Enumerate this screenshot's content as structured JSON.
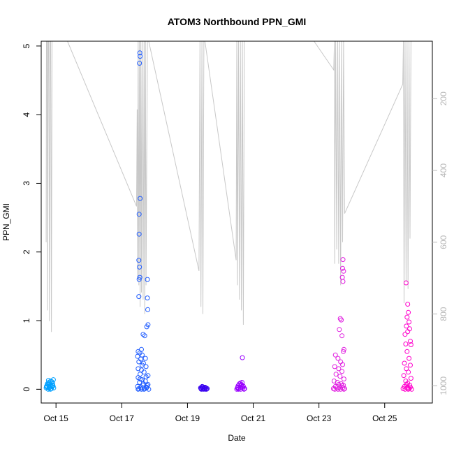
{
  "chart_data": {
    "type": "scatter",
    "title": "ATOM3 Northbound PPN_GMI",
    "xlabel": "Date",
    "ylabel": "PPN_GMI",
    "xlim": [
      14.55,
      26.45
    ],
    "ylim": [
      -0.2,
      5.07
    ],
    "x_ticks": [
      {
        "label": "Oct 15",
        "value": 15
      },
      {
        "label": "Oct 17",
        "value": 17
      },
      {
        "label": "Oct 19",
        "value": 19
      },
      {
        "label": "Oct 21",
        "value": 21
      },
      {
        "label": "Oct 23",
        "value": 23
      },
      {
        "label": "Oct 25",
        "value": 25
      }
    ],
    "y_ticks": [
      "0",
      "1",
      "2",
      "3",
      "4",
      "5"
    ],
    "y2_ticks": [
      "200",
      "400",
      "600",
      "800",
      "1000"
    ],
    "y2_range": [
      1048,
      40
    ],
    "grid": false,
    "series": [
      {
        "color": "#00a0ff",
        "points": [
          [
            14.7,
            0.02
          ],
          [
            14.72,
            0.05
          ],
          [
            14.74,
            0.08
          ],
          [
            14.76,
            0.0
          ],
          [
            14.78,
            0.1
          ],
          [
            14.8,
            0.03
          ],
          [
            14.82,
            0.06
          ],
          [
            14.84,
            0.12
          ],
          [
            14.86,
            0.01
          ],
          [
            14.88,
            0.04
          ],
          [
            14.9,
            0.09
          ],
          [
            14.92,
            0.14
          ],
          [
            14.75,
            0.07
          ],
          [
            14.79,
            0.02
          ],
          [
            14.83,
            0.0
          ],
          [
            14.87,
            0.11
          ],
          [
            14.91,
            0.05
          ],
          [
            14.73,
            0.03
          ],
          [
            14.81,
            0.08
          ],
          [
            14.85,
            0.01
          ],
          [
            14.89,
            0.06
          ],
          [
            14.93,
            0.02
          ],
          [
            14.77,
            0.13
          ],
          [
            14.71,
            0.04
          ]
        ]
      },
      {
        "color": "#1f5cff",
        "points": [
          [
            17.55,
            4.9
          ],
          [
            17.56,
            4.85
          ],
          [
            17.54,
            4.75
          ],
          [
            17.56,
            2.78
          ],
          [
            17.53,
            2.55
          ],
          [
            17.53,
            2.26
          ],
          [
            17.52,
            1.88
          ],
          [
            17.54,
            1.78
          ],
          [
            17.55,
            1.63
          ],
          [
            17.53,
            1.6
          ],
          [
            17.78,
            1.6
          ],
          [
            17.52,
            1.35
          ],
          [
            17.78,
            1.33
          ],
          [
            17.79,
            1.16
          ],
          [
            17.8,
            0.94
          ],
          [
            17.76,
            0.91
          ],
          [
            17.65,
            0.8
          ],
          [
            17.7,
            0.78
          ],
          [
            17.6,
            0.58
          ],
          [
            17.55,
            0.53
          ],
          [
            17.5,
            0.55
          ],
          [
            17.62,
            0.5
          ],
          [
            17.48,
            0.48
          ],
          [
            17.58,
            0.44
          ],
          [
            17.72,
            0.45
          ],
          [
            17.52,
            0.4
          ],
          [
            17.66,
            0.38
          ],
          [
            17.74,
            0.33
          ],
          [
            17.5,
            0.3
          ],
          [
            17.6,
            0.28
          ],
          [
            17.68,
            0.25
          ],
          [
            17.56,
            0.22
          ],
          [
            17.8,
            0.2
          ],
          [
            17.5,
            0.17
          ],
          [
            17.62,
            0.14
          ],
          [
            17.72,
            0.12
          ],
          [
            17.54,
            0.1
          ],
          [
            17.66,
            0.08
          ],
          [
            17.78,
            0.05
          ],
          [
            17.48,
            0.04
          ],
          [
            17.58,
            0.02
          ],
          [
            17.7,
            0.01
          ],
          [
            17.82,
            0.0
          ],
          [
            17.5,
            0.0
          ],
          [
            17.6,
            0.0
          ],
          [
            17.75,
            0.02
          ],
          [
            17.64,
            0.06
          ],
          [
            17.76,
            0.03
          ],
          [
            17.52,
            0.01
          ],
          [
            17.68,
            0.0
          ],
          [
            17.8,
            0.07
          ],
          [
            17.56,
            0.15
          ],
          [
            17.74,
            0.18
          ],
          [
            17.62,
            0.35
          ]
        ]
      },
      {
        "color": "#3800f0",
        "points": [
          [
            19.4,
            0.02
          ],
          [
            19.42,
            0.0
          ],
          [
            19.44,
            0.03
          ],
          [
            19.46,
            0.01
          ],
          [
            19.48,
            0.0
          ],
          [
            19.5,
            0.02
          ],
          [
            19.52,
            0.01
          ],
          [
            19.54,
            0.0
          ],
          [
            19.56,
            0.02
          ],
          [
            19.58,
            0.0
          ],
          [
            19.45,
            0.04
          ],
          [
            19.53,
            0.03
          ],
          [
            19.6,
            0.01
          ],
          [
            19.41,
            0.01
          ]
        ]
      },
      {
        "color": "#9900ff",
        "points": [
          [
            20.5,
            0.0
          ],
          [
            20.52,
            0.02
          ],
          [
            20.54,
            0.05
          ],
          [
            20.56,
            0.01
          ],
          [
            20.58,
            0.08
          ],
          [
            20.6,
            0.03
          ],
          [
            20.62,
            0.0
          ],
          [
            20.64,
            0.06
          ],
          [
            20.66,
            0.1
          ],
          [
            20.68,
            0.02
          ],
          [
            20.7,
            0.04
          ],
          [
            20.72,
            0.0
          ],
          [
            20.74,
            0.01
          ],
          [
            20.67,
            0.46
          ],
          [
            20.55,
            0.0
          ],
          [
            20.63,
            0.07
          ],
          [
            20.69,
            0.05
          ],
          [
            20.53,
            0.03
          ],
          [
            20.61,
            0.09
          ]
        ]
      },
      {
        "color": "#e01ee0",
        "points": [
          [
            23.73,
            1.89
          ],
          [
            23.72,
            1.76
          ],
          [
            23.75,
            1.72
          ],
          [
            23.71,
            1.63
          ],
          [
            23.73,
            1.57
          ],
          [
            23.65,
            1.03
          ],
          [
            23.68,
            1.01
          ],
          [
            23.62,
            0.87
          ],
          [
            23.7,
            0.78
          ],
          [
            23.76,
            0.58
          ],
          [
            23.74,
            0.55
          ],
          [
            23.5,
            0.5
          ],
          [
            23.58,
            0.45
          ],
          [
            23.66,
            0.4
          ],
          [
            23.72,
            0.36
          ],
          [
            23.48,
            0.33
          ],
          [
            23.6,
            0.3
          ],
          [
            23.7,
            0.26
          ],
          [
            23.52,
            0.22
          ],
          [
            23.64,
            0.19
          ],
          [
            23.76,
            0.15
          ],
          [
            23.46,
            0.12
          ],
          [
            23.56,
            0.1
          ],
          [
            23.68,
            0.08
          ],
          [
            23.74,
            0.06
          ],
          [
            23.5,
            0.04
          ],
          [
            23.62,
            0.03
          ],
          [
            23.72,
            0.02
          ],
          [
            23.44,
            0.01
          ],
          [
            23.58,
            0.0
          ],
          [
            23.66,
            0.0
          ],
          [
            23.78,
            0.01
          ],
          [
            23.54,
            0.02
          ],
          [
            23.7,
            0.05
          ],
          [
            23.6,
            0.07
          ],
          [
            23.48,
            0.0
          ],
          [
            23.76,
            0.0
          ]
        ]
      },
      {
        "color": "#ff00cc",
        "points": [
          [
            25.65,
            1.55
          ],
          [
            25.7,
            1.24
          ],
          [
            25.72,
            1.12
          ],
          [
            25.68,
            1.05
          ],
          [
            25.74,
            0.98
          ],
          [
            25.66,
            0.92
          ],
          [
            25.76,
            0.88
          ],
          [
            25.7,
            0.84
          ],
          [
            25.62,
            0.8
          ],
          [
            25.78,
            0.7
          ],
          [
            25.64,
            0.66
          ],
          [
            25.8,
            0.65
          ],
          [
            25.68,
            0.55
          ],
          [
            25.74,
            0.45
          ],
          [
            25.6,
            0.38
          ],
          [
            25.78,
            0.35
          ],
          [
            25.66,
            0.3
          ],
          [
            25.72,
            0.25
          ],
          [
            25.58,
            0.2
          ],
          [
            25.8,
            0.16
          ],
          [
            25.64,
            0.12
          ],
          [
            25.7,
            0.09
          ],
          [
            25.76,
            0.06
          ],
          [
            25.6,
            0.04
          ],
          [
            25.68,
            0.02
          ],
          [
            25.74,
            0.01
          ],
          [
            25.82,
            0.0
          ],
          [
            25.62,
            0.0
          ],
          [
            25.72,
            0.0
          ],
          [
            25.78,
            0.03
          ],
          [
            25.56,
            0.01
          ],
          [
            25.66,
            0.07
          ]
        ]
      }
    ],
    "depth_trace": {
      "color": "#c8c8c8",
      "axis": "right",
      "points": [
        [
          14.7,
          600
        ],
        [
          14.71,
          40
        ],
        [
          14.73,
          40
        ],
        [
          14.74,
          790
        ],
        [
          14.76,
          40
        ],
        [
          14.78,
          40
        ],
        [
          14.8,
          820
        ],
        [
          14.82,
          40
        ],
        [
          14.84,
          40
        ],
        [
          14.86,
          850
        ],
        [
          14.88,
          40
        ],
        [
          14.9,
          40
        ],
        [
          15.35,
          40
        ],
        [
          17.45,
          500
        ],
        [
          17.47,
          230
        ],
        [
          17.48,
          700
        ],
        [
          17.5,
          40
        ],
        [
          17.52,
          720
        ],
        [
          17.54,
          40
        ],
        [
          17.56,
          780
        ],
        [
          17.58,
          40
        ],
        [
          17.6,
          740
        ],
        [
          17.62,
          40
        ],
        [
          17.65,
          760
        ],
        [
          17.68,
          40
        ],
        [
          17.7,
          800
        ],
        [
          17.72,
          40
        ],
        [
          17.74,
          720
        ],
        [
          17.78,
          40
        ],
        [
          17.82,
          40
        ],
        [
          19.35,
          680
        ],
        [
          19.38,
          40
        ],
        [
          19.41,
          780
        ],
        [
          19.44,
          40
        ],
        [
          19.47,
          800
        ],
        [
          19.5,
          40
        ],
        [
          19.53,
          40
        ],
        [
          20.48,
          650
        ],
        [
          20.5,
          40
        ],
        [
          20.52,
          720
        ],
        [
          20.55,
          40
        ],
        [
          20.58,
          760
        ],
        [
          20.61,
          40
        ],
        [
          20.64,
          790
        ],
        [
          20.67,
          40
        ],
        [
          20.7,
          830
        ],
        [
          20.73,
          40
        ],
        [
          20.76,
          40
        ],
        [
          22.85,
          40
        ],
        [
          23.45,
          120
        ],
        [
          23.47,
          40
        ],
        [
          23.48,
          660
        ],
        [
          23.51,
          40
        ],
        [
          23.54,
          620
        ],
        [
          23.57,
          40
        ],
        [
          23.6,
          660
        ],
        [
          23.63,
          40
        ],
        [
          23.66,
          720
        ],
        [
          23.69,
          40
        ],
        [
          23.72,
          600
        ],
        [
          23.75,
          40
        ],
        [
          23.78,
          520
        ],
        [
          25.55,
          160
        ],
        [
          25.57,
          40
        ],
        [
          25.59,
          770
        ],
        [
          25.62,
          40
        ],
        [
          25.65,
          710
        ],
        [
          25.68,
          40
        ],
        [
          25.71,
          730
        ],
        [
          25.74,
          40
        ],
        [
          25.77,
          590
        ],
        [
          25.8,
          40
        ]
      ]
    }
  }
}
